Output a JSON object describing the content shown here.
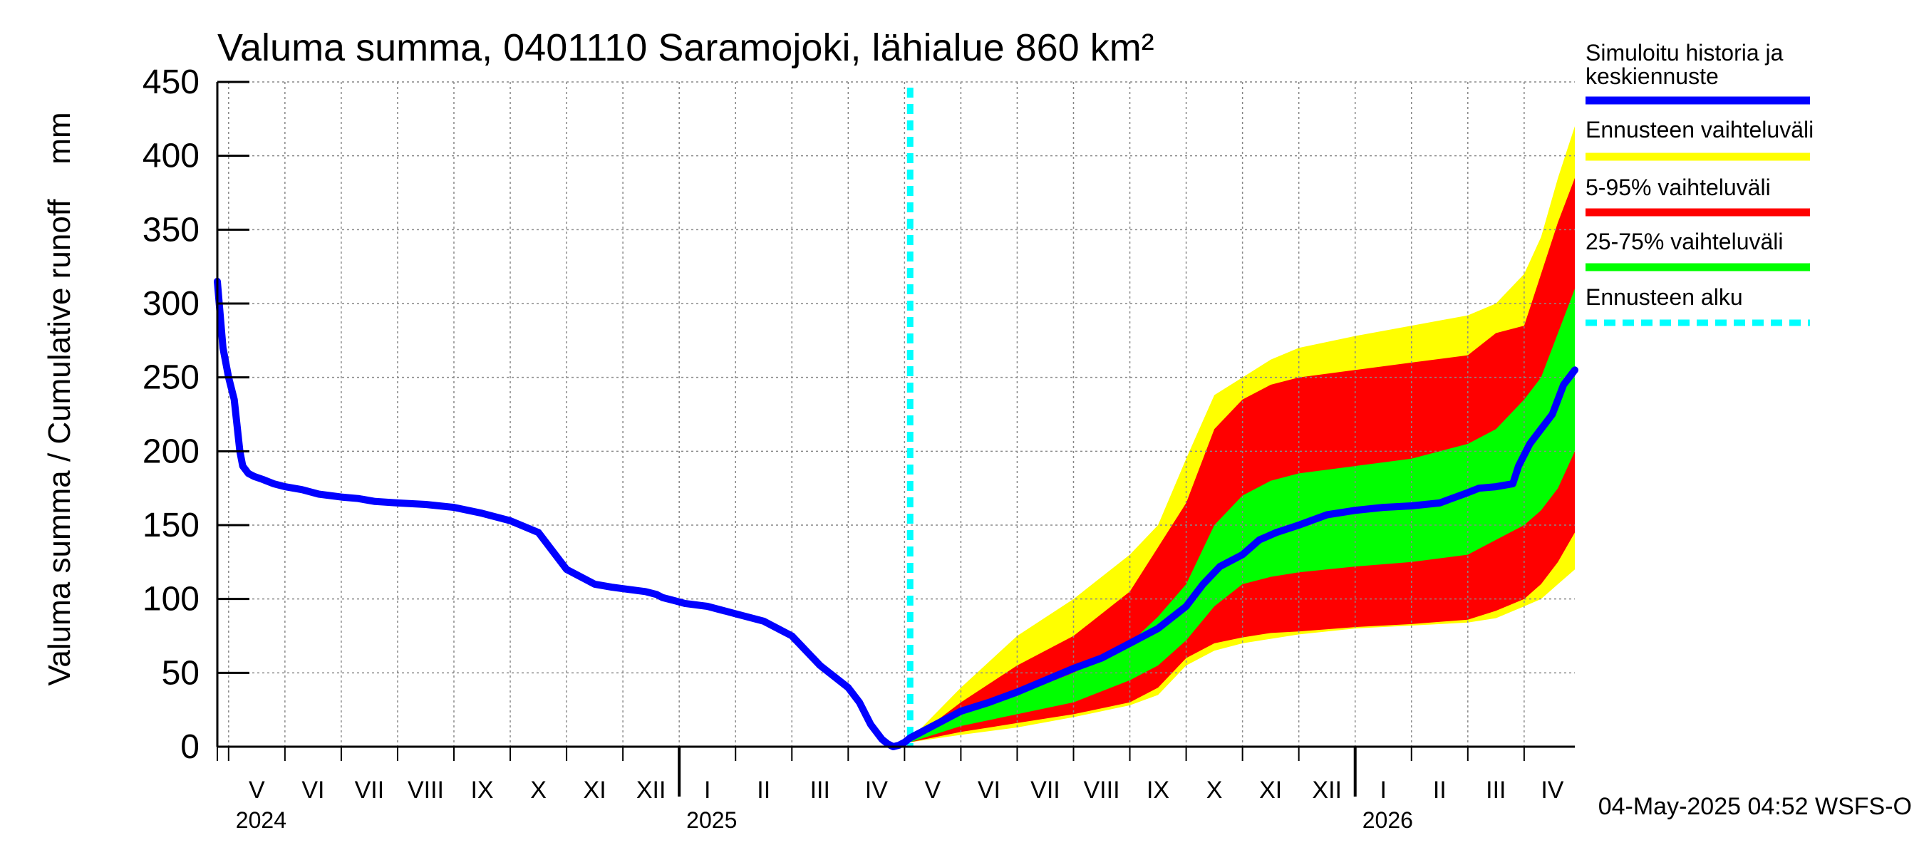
{
  "chart_data": {
    "type": "area",
    "title": "Valuma summa, 0401110 Saramojoki, lähialue 860 km²",
    "ylabel": "Valuma summa / Cumulative runoff    mm",
    "ylim": [
      0,
      450
    ],
    "yticks": [
      0,
      50,
      100,
      150,
      200,
      250,
      300,
      350,
      400,
      450
    ],
    "x_unit": "months since 2024-04-01",
    "xlim": [
      0.8,
      24.9
    ],
    "months": [
      "V",
      "VI",
      "VII",
      "VIII",
      "IX",
      "X",
      "XI",
      "XII",
      "I",
      "II",
      "III",
      "IV",
      "V",
      "VI",
      "VII",
      "VIII",
      "IX",
      "X",
      "XI",
      "XII",
      "I",
      "II",
      "III",
      "IV"
    ],
    "years": [
      {
        "label": "2024",
        "x": 1
      },
      {
        "label": "2025",
        "x": 9
      },
      {
        "label": "2026",
        "x": 21
      }
    ],
    "forecast_start": 13.1,
    "series": [
      {
        "name": "Simuloitu historia ja keskiennuste",
        "color": "#0000ff",
        "x": [
          0.8,
          0.9,
          1.0,
          1.1,
          1.2,
          1.25,
          1.35,
          1.45,
          1.6,
          1.8,
          2,
          2.3,
          2.6,
          3,
          3.3,
          3.6,
          4,
          4.5,
          5,
          5.5,
          6,
          6.5,
          7,
          7.5,
          7.8,
          8,
          8.4,
          8.6,
          8.7,
          8.9,
          9.1,
          9.5,
          10,
          10.5,
          11,
          11.5,
          12,
          12.2,
          12.4,
          12.6,
          12.7,
          12.8,
          12.9,
          13.0,
          13.1,
          13.3,
          13.6,
          14,
          14.5,
          15,
          15.5,
          16,
          16.5,
          17,
          17.5,
          18,
          18.3,
          18.6,
          19,
          19.3,
          19.6,
          20,
          20.5,
          21,
          21.5,
          22,
          22.5,
          23,
          23.2,
          23.5,
          23.8,
          23.9,
          24.1,
          24.3,
          24.5,
          24.7,
          24.9
        ],
        "y": [
          315,
          270,
          250,
          235,
          200,
          190,
          185,
          183,
          181,
          178,
          176,
          174,
          171,
          169,
          168,
          166,
          165,
          164,
          162,
          158,
          153,
          145,
          120,
          110,
          108,
          107,
          105,
          103,
          101,
          99,
          97,
          95,
          90,
          85,
          75,
          55,
          40,
          30,
          15,
          5,
          2,
          0,
          1,
          3,
          6,
          10,
          16,
          24,
          30,
          37,
          45,
          53,
          60,
          70,
          80,
          95,
          110,
          122,
          130,
          140,
          145,
          150,
          157,
          160,
          162,
          163,
          165,
          172,
          175,
          176,
          178,
          190,
          205,
          215,
          225,
          245,
          255
        ]
      },
      {
        "name": "Ennusteen vaihteluväli",
        "color": "#ffff00",
        "x": [
          13.1,
          14,
          15,
          16,
          17,
          17.5,
          18,
          18.5,
          19,
          19.5,
          20,
          21,
          22,
          23,
          23.5,
          24,
          24.3,
          24.6,
          24.9
        ],
        "upper": [
          5,
          40,
          75,
          100,
          130,
          150,
          195,
          238,
          250,
          262,
          270,
          278,
          285,
          292,
          300,
          320,
          345,
          385,
          420
        ],
        "lower": [
          3,
          8,
          13,
          20,
          28,
          35,
          55,
          65,
          70,
          73,
          76,
          80,
          82,
          84,
          87,
          95,
          100,
          110,
          120
        ]
      },
      {
        "name": "5-95% vaihteluväli",
        "color": "#ff0000",
        "x": [
          13.1,
          14,
          15,
          16,
          17,
          17.5,
          18,
          18.5,
          19,
          19.5,
          20,
          21,
          22,
          23,
          23.5,
          24,
          24.3,
          24.6,
          24.9
        ],
        "upper": [
          4,
          30,
          55,
          75,
          105,
          135,
          165,
          215,
          235,
          245,
          250,
          255,
          260,
          265,
          280,
          285,
          320,
          355,
          385
        ],
        "lower": [
          3,
          10,
          16,
          22,
          30,
          40,
          60,
          70,
          74,
          77,
          78,
          81,
          83,
          86,
          92,
          100,
          110,
          125,
          145
        ]
      },
      {
        "name": "25-75% vaihteluväli",
        "color": "#00ff00",
        "x": [
          13.1,
          14,
          15,
          16,
          17,
          17.5,
          18,
          18.5,
          19,
          19.5,
          20,
          21,
          22,
          23,
          23.5,
          24,
          24.3,
          24.6,
          24.9
        ],
        "upper": [
          3.5,
          22,
          35,
          50,
          70,
          88,
          110,
          150,
          170,
          180,
          185,
          190,
          195,
          205,
          215,
          235,
          250,
          280,
          310
        ],
        "lower": [
          3,
          14,
          22,
          30,
          45,
          55,
          72,
          95,
          110,
          115,
          118,
          122,
          125,
          130,
          140,
          150,
          160,
          175,
          200
        ]
      },
      {
        "name": "Ennusteen alku",
        "color": "#00ffff"
      }
    ],
    "legend": [
      {
        "label": "Simuloitu historia ja keskiennuste",
        "color": "#0000ff",
        "style": "solid"
      },
      {
        "label": "Ennusteen vaihteluväli",
        "color": "#ffff00",
        "style": "solid"
      },
      {
        "label": "5-95% vaihteluväli",
        "color": "#ff0000",
        "style": "solid"
      },
      {
        "label": "25-75% vaihteluväli",
        "color": "#00ff00",
        "style": "solid"
      },
      {
        "label": "Ennusteen alku",
        "color": "#00ffff",
        "style": "dashed"
      }
    ],
    "legend_position": "right",
    "grid": true
  },
  "footer": "04-May-2025 04:52 WSFS-O"
}
